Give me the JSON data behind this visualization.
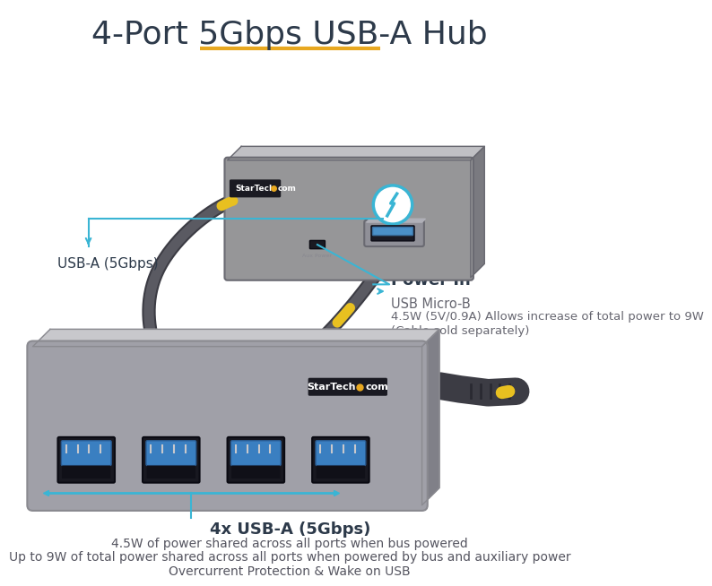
{
  "title": "4-Port 5Gbps USB-A Hub",
  "title_color": "#2d3a4a",
  "title_fontsize": 26,
  "title_underline_color": "#e8a820",
  "background_color": "#ffffff",
  "usba_label": "USB-A (5Gbps)",
  "usba_label_color": "#2d3a4a",
  "usba_label_fontsize": 11,
  "power_in_label": "Power In",
  "power_in_sub1": "USB Micro-B",
  "power_in_sub2": "4.5W (5V/0.9A) Allows increase of total power to 9W",
  "power_in_sub3": "(Cable sold separately)",
  "power_label_color": "#2d3a4a",
  "power_label_fontsize": 12,
  "ports_label": "4x USB-A (5Gbps)",
  "ports_sub1": "4.5W of power shared across all ports when bus powered",
  "ports_sub2": "Up to 9W of total power shared across all ports when powered by bus and auxiliary power",
  "ports_sub3": "Overcurrent Protection & Wake on USB",
  "ports_label_color": "#2d3a4a",
  "annotation_line_color": "#3ab5d4",
  "hub_body_color": "#969698",
  "hub_body_light": "#b8b8bc",
  "hub_body_edge": "#6a6a72",
  "cable_color": "#3c3c44",
  "cable_yellow_color": "#e8c020",
  "usb_port_blue": "#3a7fc1",
  "usb_port_dark": "#181820",
  "startech_dot_color": "#e8a820",
  "startech_text_color": "#ffffff"
}
